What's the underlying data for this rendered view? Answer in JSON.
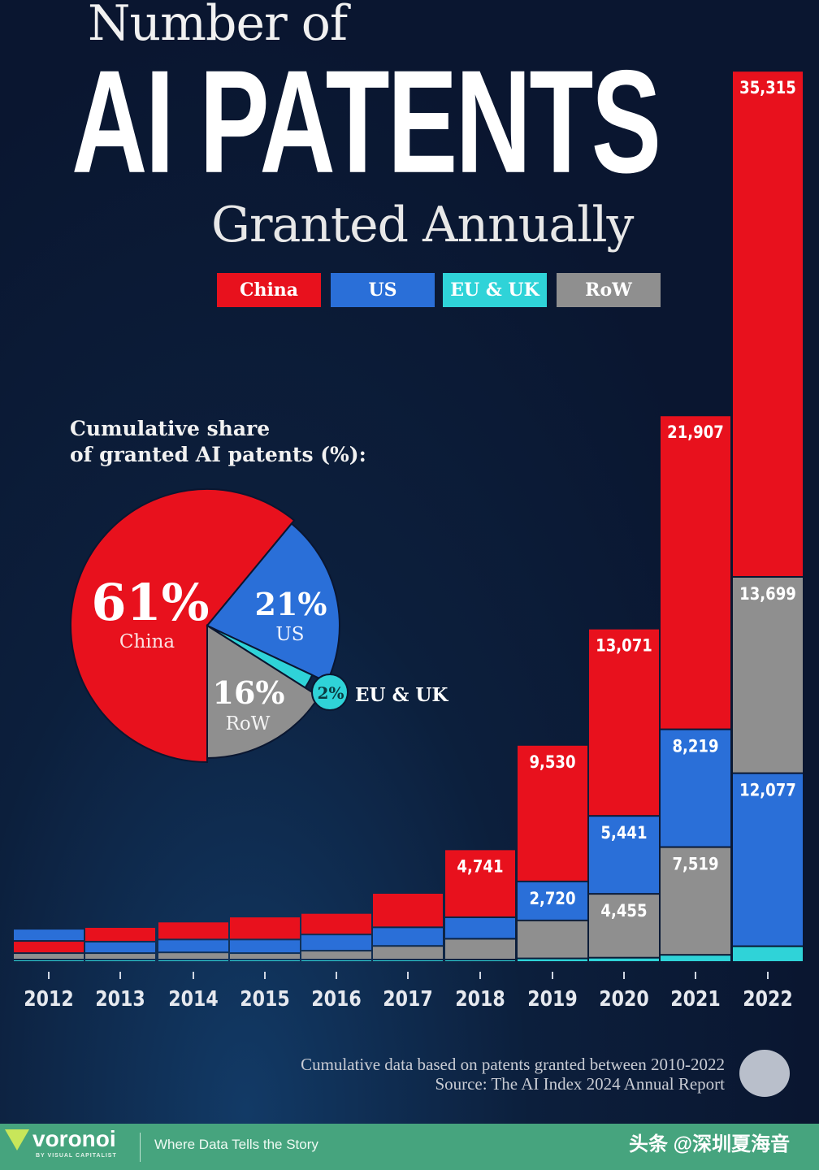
{
  "header": {
    "line1": "Number of",
    "line2": "AI PATENTS",
    "line3": "Granted Annually"
  },
  "legend": [
    {
      "label": "China",
      "color": "#e8111d"
    },
    {
      "label": "US",
      "color": "#2a6fd8"
    },
    {
      "label": "EU & UK",
      "color": "#2fd3d8"
    },
    {
      "label": "RoW",
      "color": "#8f8f8f"
    }
  ],
  "pie": {
    "title_line1": "Cumulative share",
    "title_line2": "of granted AI patents (%):",
    "labels": {
      "china_pct": "61%",
      "china_name": "China",
      "us_pct": "21%",
      "us_name": "US",
      "row_pct": "16%",
      "row_name": "RoW",
      "eu_pct": "2%",
      "eu_name": "EU & UK"
    }
  },
  "chart_data": [
    {
      "type": "bar",
      "stacked": true,
      "categories": [
        "2012",
        "2013",
        "2014",
        "2015",
        "2016",
        "2017",
        "2018",
        "2019",
        "2020",
        "2021",
        "2022"
      ],
      "series": [
        {
          "name": "China",
          "color": "#e8111d",
          "values": [
            850,
            1020,
            1250,
            1600,
            1500,
            2400,
            4741,
            9530,
            13071,
            21907,
            35315
          ]
        },
        {
          "name": "US",
          "color": "#2a6fd8",
          "values": [
            850,
            800,
            900,
            950,
            1130,
            1300,
            1500,
            2720,
            5441,
            8219,
            12077
          ]
        },
        {
          "name": "EU & UK",
          "color": "#2fd3d8",
          "values": [
            50,
            50,
            50,
            50,
            60,
            80,
            100,
            250,
            300,
            500,
            1100
          ]
        },
        {
          "name": "RoW",
          "color": "#8f8f8f",
          "values": [
            450,
            450,
            500,
            450,
            620,
            950,
            1450,
            2650,
            4455,
            7519,
            13699
          ]
        }
      ],
      "stack_order_bottom_to_top": {
        "default": [
          "EU & UK",
          "RoW",
          "US",
          "China"
        ],
        "2012": [
          "EU & UK",
          "RoW",
          "China",
          "US"
        ],
        "2022": [
          "EU & UK",
          "US",
          "RoW",
          "China"
        ]
      },
      "data_labels": {
        "China": {
          "2018": "4,741",
          "2019": "9,530",
          "2020": "13,071",
          "2021": "21,907",
          "2022": "35,315"
        },
        "US": {
          "2019": "2,720",
          "2020": "5,441",
          "2021": "8,219",
          "2022": "12,077"
        },
        "RoW": {
          "2020": "4,455",
          "2021": "7,519",
          "2022": "13,699"
        }
      },
      "ylim": [
        0,
        63000
      ],
      "grid": false,
      "legend": "top"
    },
    {
      "type": "pie",
      "categories": [
        "China",
        "US",
        "EU & UK",
        "RoW"
      ],
      "values": [
        61,
        21,
        2,
        16
      ],
      "colors": [
        "#e8111d",
        "#2a6fd8",
        "#2fd3d8",
        "#8f8f8f"
      ]
    }
  ],
  "footnote": {
    "line1": "Cumulative data based on patents granted between 2010-2022",
    "line2": "Source: The AI Index 2024 Annual Report"
  },
  "footer": {
    "brand": "voronoi",
    "brand_sub": "BY VISUAL CAPITALIST",
    "tagline": "Where Data Tells the Story",
    "watermark": "头条 @深圳夏海音"
  }
}
